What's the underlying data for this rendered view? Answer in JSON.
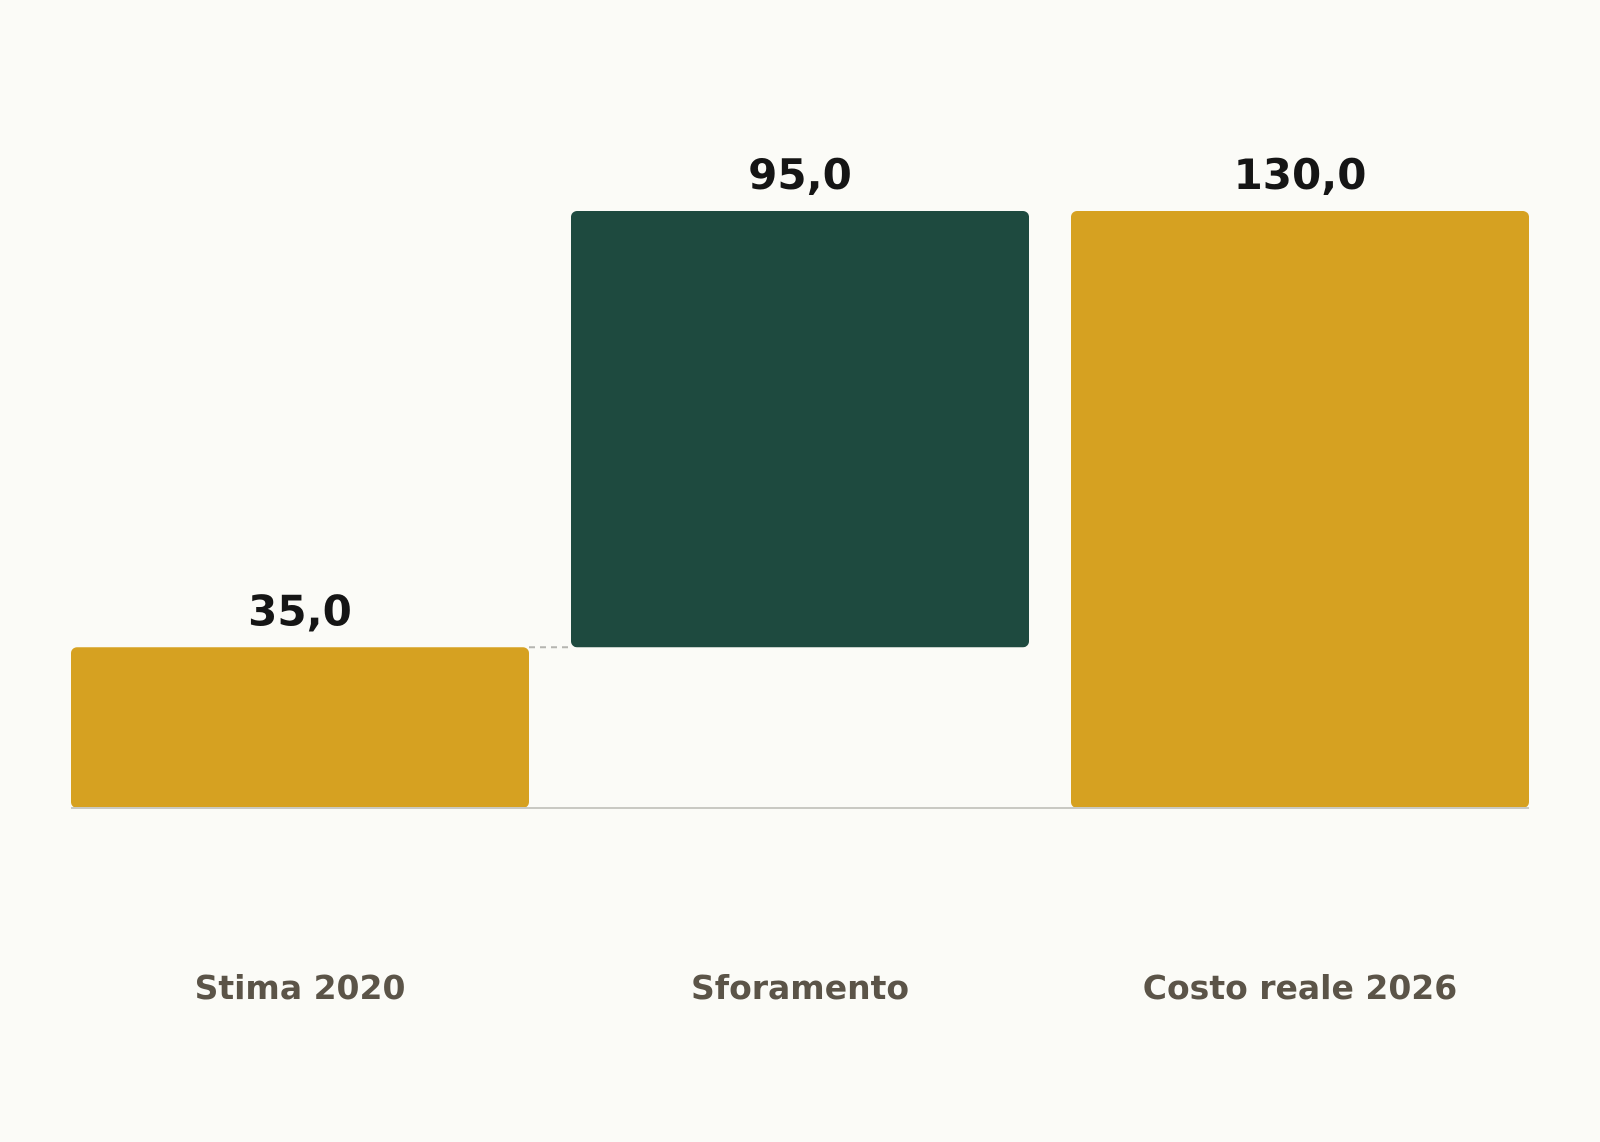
{
  "chart_data": {
    "type": "bar",
    "subtype": "waterfall",
    "categories": [
      "Stima 2020",
      "Sforamento",
      "Costo reale 2026"
    ],
    "values": [
      35.0,
      95.0,
      130.0
    ],
    "value_labels": [
      "35,0",
      "95,0",
      "130,0"
    ],
    "bar_kinds": [
      "total",
      "increment",
      "total"
    ],
    "colors": {
      "total": "#d6a121",
      "increment": "#1e4a3f",
      "baseline": "#c9c9c3",
      "connector": "#b5b5b0"
    },
    "ylim": [
      0,
      130
    ],
    "grid": false,
    "legend": "none"
  }
}
